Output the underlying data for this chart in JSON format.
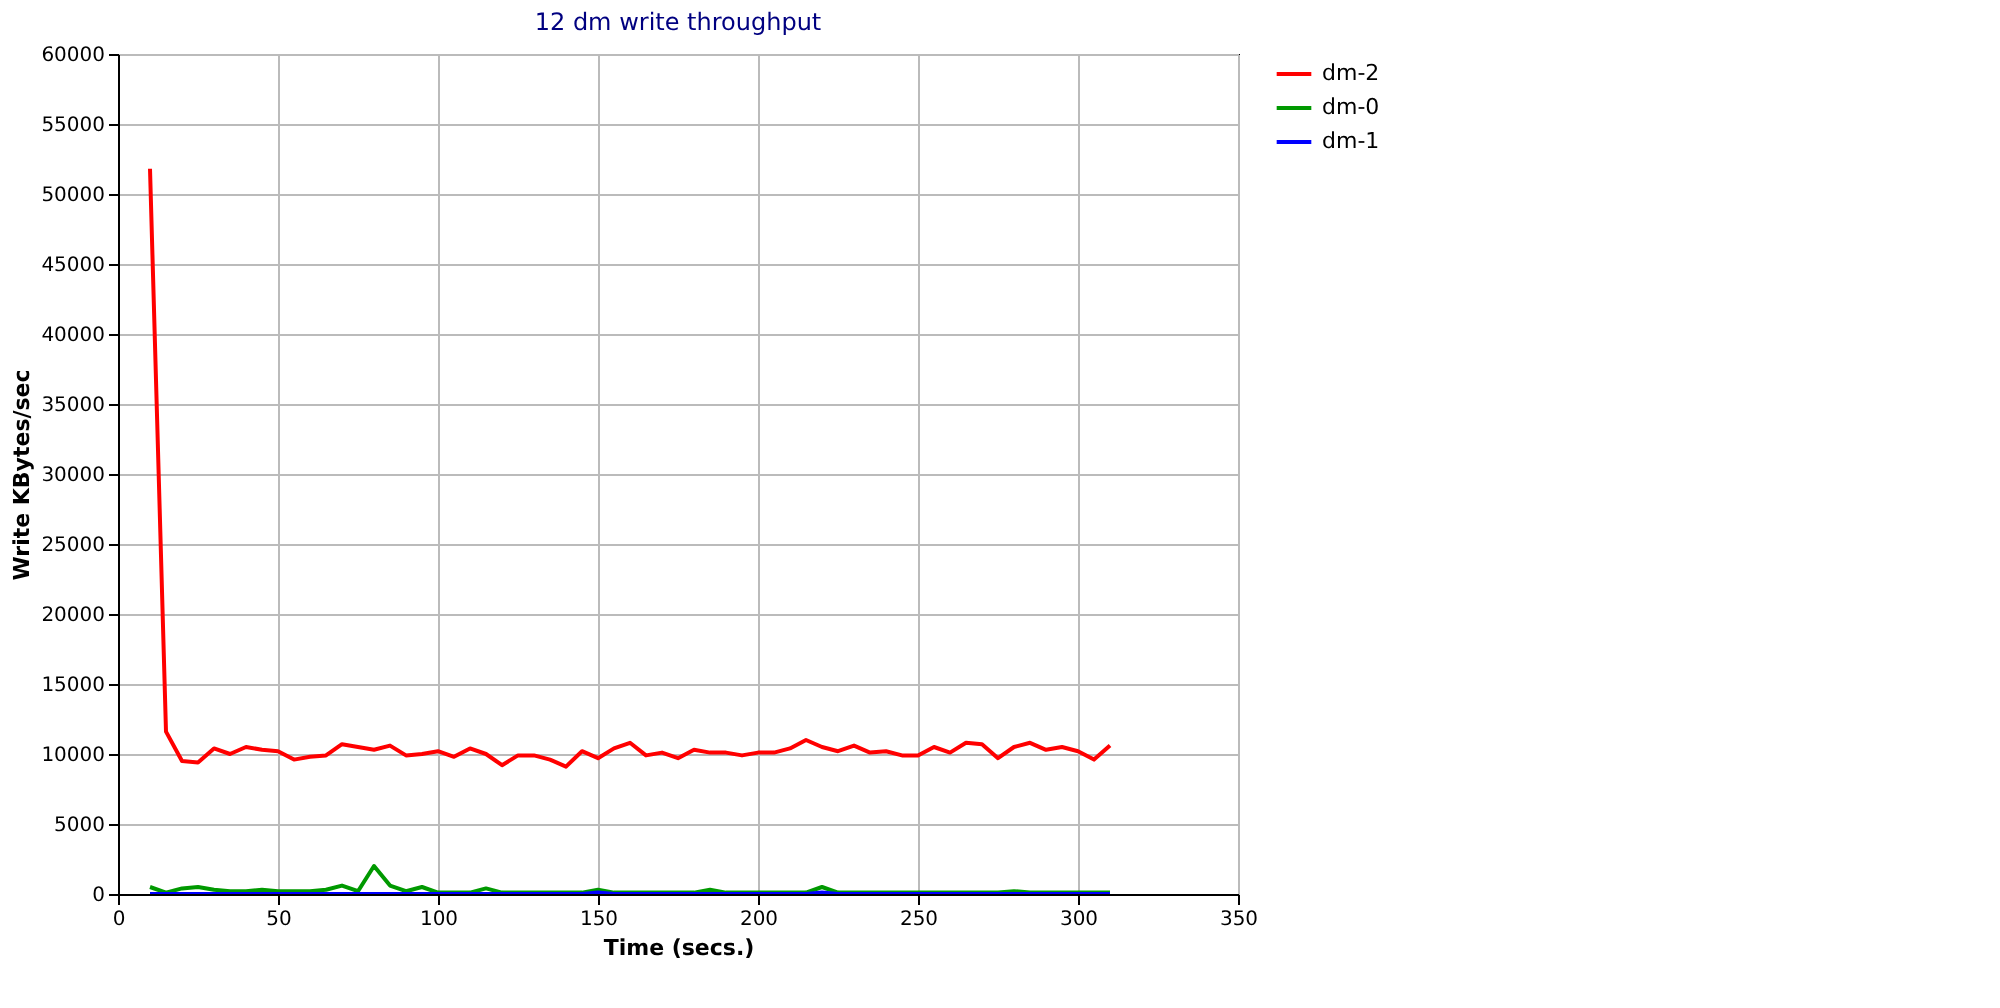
{
  "chart_data": {
    "type": "line",
    "title": "12 dm write throughput",
    "xlabel": "Time (secs.)",
    "ylabel": "Write KBytes/sec",
    "x": [
      10,
      15,
      20,
      25,
      30,
      35,
      40,
      45,
      50,
      55,
      60,
      65,
      70,
      75,
      80,
      85,
      90,
      95,
      100,
      105,
      110,
      115,
      120,
      125,
      130,
      135,
      140,
      145,
      150,
      155,
      160,
      165,
      170,
      175,
      180,
      185,
      190,
      195,
      200,
      205,
      210,
      215,
      220,
      225,
      230,
      235,
      240,
      245,
      250,
      255,
      260,
      265,
      270,
      275,
      280,
      285,
      290,
      295,
      300,
      305,
      310
    ],
    "series": [
      {
        "name": "dm-2",
        "color": "#ff0000",
        "values": [
          51800,
          11600,
          9500,
          9400,
          10400,
          10000,
          10500,
          10300,
          10200,
          9600,
          9800,
          9900,
          10700,
          10500,
          10300,
          10600,
          9900,
          10000,
          10200,
          9800,
          10400,
          10000,
          9200,
          9900,
          9900,
          9600,
          9100,
          10200,
          9700,
          10400,
          10800,
          9900,
          10100,
          9700,
          10300,
          10100,
          10100,
          9900,
          10100,
          10100,
          10400,
          11000,
          10500,
          10200,
          10600,
          10100,
          10200,
          9900,
          9900,
          10500,
          10100,
          10800,
          10700,
          9700,
          10500,
          10800,
          10300,
          10500,
          10200,
          9600,
          10600
        ]
      },
      {
        "name": "dm-0",
        "color": "#009900",
        "values": [
          500,
          100,
          400,
          500,
          300,
          200,
          200,
          300,
          200,
          200,
          200,
          300,
          600,
          200,
          2000,
          600,
          200,
          500,
          100,
          100,
          100,
          400,
          100,
          100,
          100,
          100,
          100,
          100,
          300,
          100,
          100,
          100,
          100,
          100,
          100,
          300,
          100,
          100,
          100,
          100,
          100,
          100,
          500,
          100,
          100,
          100,
          100,
          100,
          100,
          100,
          100,
          100,
          100,
          100,
          200,
          100,
          100,
          100,
          100,
          100,
          100
        ]
      },
      {
        "name": "dm-1",
        "color": "#0000ff",
        "values": [
          0,
          0,
          0,
          0,
          0,
          0,
          0,
          0,
          0,
          0,
          0,
          0,
          0,
          0,
          0,
          0,
          0,
          0,
          0,
          0,
          0,
          0,
          0,
          0,
          0,
          0,
          0,
          0,
          100,
          0,
          0,
          0,
          0,
          0,
          0,
          0,
          0,
          0,
          0,
          0,
          0,
          0,
          100,
          0,
          0,
          0,
          0,
          0,
          0,
          0,
          0,
          0,
          0,
          0,
          0,
          0,
          0,
          0,
          0,
          0,
          0
        ]
      }
    ],
    "xlim": [
      0,
      350
    ],
    "xticks": [
      0,
      50,
      100,
      150,
      200,
      250,
      300,
      350
    ],
    "ylim": [
      0,
      60000
    ],
    "yticks": [
      0,
      5000,
      10000,
      15000,
      20000,
      25000,
      30000,
      35000,
      40000,
      45000,
      50000,
      55000,
      60000
    ],
    "grid": true,
    "legend": "top right",
    "marker": "none",
    "line_style": "solid"
  }
}
